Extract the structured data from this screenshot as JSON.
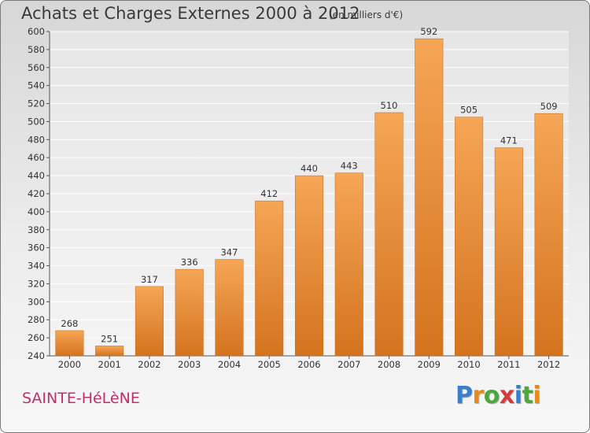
{
  "chart_data": {
    "type": "bar",
    "title": "Achats et Charges Externes 2000 à 2012",
    "subtitle": "(en milliers d'€)",
    "categories": [
      "2000",
      "2001",
      "2002",
      "2003",
      "2004",
      "2005",
      "2006",
      "2007",
      "2008",
      "2009",
      "2010",
      "2011",
      "2012"
    ],
    "values": [
      268,
      251,
      317,
      336,
      347,
      412,
      440,
      443,
      510,
      592,
      505,
      471,
      509
    ],
    "ylim": [
      240,
      600
    ],
    "yticks": [
      240,
      260,
      280,
      300,
      320,
      340,
      360,
      380,
      400,
      420,
      440,
      460,
      480,
      500,
      520,
      540,
      560,
      580,
      600
    ],
    "grid": true,
    "bar_color_top": "#f5a656",
    "bar_color_bottom": "#d4731f"
  },
  "footer": {
    "commune": "SAINTE-HéLèNE",
    "commune_color": "#c0306a",
    "logo_letters": [
      {
        "ch": "P",
        "color": "#3a7fc9"
      },
      {
        "ch": "r",
        "color": "#e88a1a"
      },
      {
        "ch": "o",
        "color": "#4ca83a"
      },
      {
        "ch": "x",
        "color": "#d63a3a"
      },
      {
        "ch": "i",
        "color": "#3a7fc9"
      },
      {
        "ch": "t",
        "color": "#4ca83a"
      },
      {
        "ch": "i",
        "color": "#e88a1a"
      }
    ]
  }
}
